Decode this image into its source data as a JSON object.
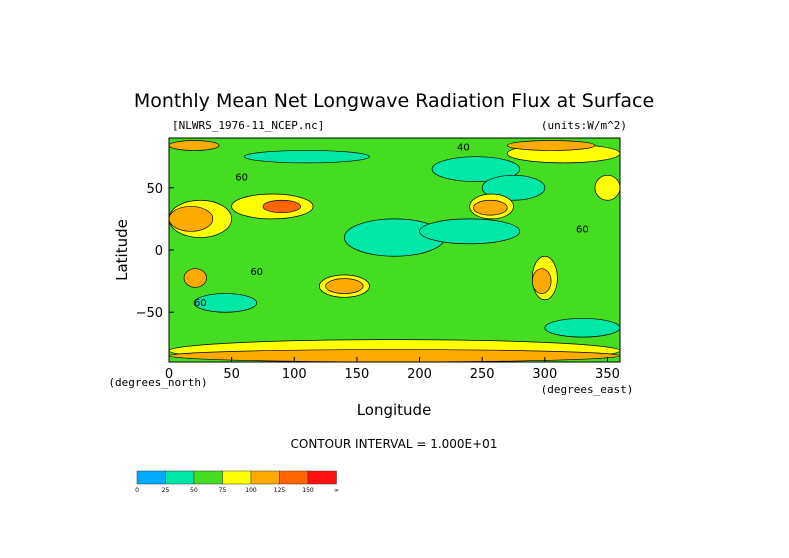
{
  "chart_data": {
    "type": "heatmap",
    "title": "Monthly Mean Net Longwave Radiation Flux at Surface",
    "file_label": "[NLWRS_1976-11_NCEP.nc]",
    "units_label": "(units:W/m^2)",
    "xlabel": "Longitude",
    "ylabel": "Latitude",
    "x_unit_label": "(degrees_east)",
    "y_unit_label": "(degrees_north)",
    "xlim": [
      0,
      360
    ],
    "ylim": [
      -90,
      90
    ],
    "x_ticks": [
      0,
      50,
      100,
      150,
      200,
      250,
      300,
      350
    ],
    "y_ticks": [
      50,
      0,
      -50
    ],
    "contour_interval_text": "CONTOUR INTERVAL = 1.000E+01",
    "contour_labels": [
      "60",
      "60",
      "60",
      "40",
      "60"
    ],
    "colorbar": {
      "ticks": [
        "0",
        "25",
        "50",
        "75",
        "100",
        "125",
        "150",
        "∞"
      ],
      "colors": [
        "#00aaff",
        "#00e8a8",
        "#44dd22",
        "#ffff00",
        "#ffaa00",
        "#ff6600",
        "#ff1111"
      ]
    },
    "regions": [
      {
        "lon": [
          0,
          360
        ],
        "lat": [
          -90,
          90
        ],
        "level": 2
      },
      {
        "lon": [
          140,
          220
        ],
        "lat": [
          -5,
          25
        ],
        "level": 1
      },
      {
        "lon": [
          200,
          280
        ],
        "lat": [
          5,
          25
        ],
        "level": 1
      },
      {
        "lon": [
          210,
          280
        ],
        "lat": [
          55,
          75
        ],
        "level": 1
      },
      {
        "lon": [
          60,
          160
        ],
        "lat": [
          70,
          80
        ],
        "level": 1
      },
      {
        "lon": [
          250,
          300
        ],
        "lat": [
          40,
          60
        ],
        "level": 1
      },
      {
        "lon": [
          20,
          70
        ],
        "lat": [
          -50,
          -35
        ],
        "level": 1
      },
      {
        "lon": [
          300,
          360
        ],
        "lat": [
          -70,
          -55
        ],
        "level": 1
      },
      {
        "lon": [
          0,
          50
        ],
        "lat": [
          10,
          40
        ],
        "level": 3
      },
      {
        "lon": [
          50,
          115
        ],
        "lat": [
          25,
          45
        ],
        "level": 3
      },
      {
        "lon": [
          240,
          275
        ],
        "lat": [
          25,
          45
        ],
        "level": 3
      },
      {
        "lon": [
          120,
          160
        ],
        "lat": [
          -38,
          -20
        ],
        "level": 3
      },
      {
        "lon": [
          290,
          310
        ],
        "lat": [
          -40,
          -5
        ],
        "level": 3
      },
      {
        "lon": [
          340,
          360
        ],
        "lat": [
          40,
          60
        ],
        "level": 3
      },
      {
        "lon": [
          270,
          360
        ],
        "lat": [
          70,
          85
        ],
        "level": 3
      },
      {
        "lon": [
          0,
          360
        ],
        "lat": [
          -90,
          -72
        ],
        "level": 3
      },
      {
        "lon": [
          0,
          35
        ],
        "lat": [
          15,
          35
        ],
        "level": 4
      },
      {
        "lon": [
          75,
          105
        ],
        "lat": [
          30,
          40
        ],
        "level": 5
      },
      {
        "lon": [
          243,
          270
        ],
        "lat": [
          28,
          40
        ],
        "level": 4
      },
      {
        "lon": [
          125,
          155
        ],
        "lat": [
          -35,
          -23
        ],
        "level": 4
      },
      {
        "lon": [
          12,
          30
        ],
        "lat": [
          -30,
          -15
        ],
        "level": 4
      },
      {
        "lon": [
          290,
          305
        ],
        "lat": [
          -35,
          -15
        ],
        "level": 4
      },
      {
        "lon": [
          0,
          360
        ],
        "lat": [
          -90,
          -80
        ],
        "level": 4
      },
      {
        "lon": [
          0,
          40
        ],
        "lat": [
          80,
          88
        ],
        "level": 4
      },
      {
        "lon": [
          270,
          340
        ],
        "lat": [
          80,
          88
        ],
        "level": 4
      }
    ]
  }
}
